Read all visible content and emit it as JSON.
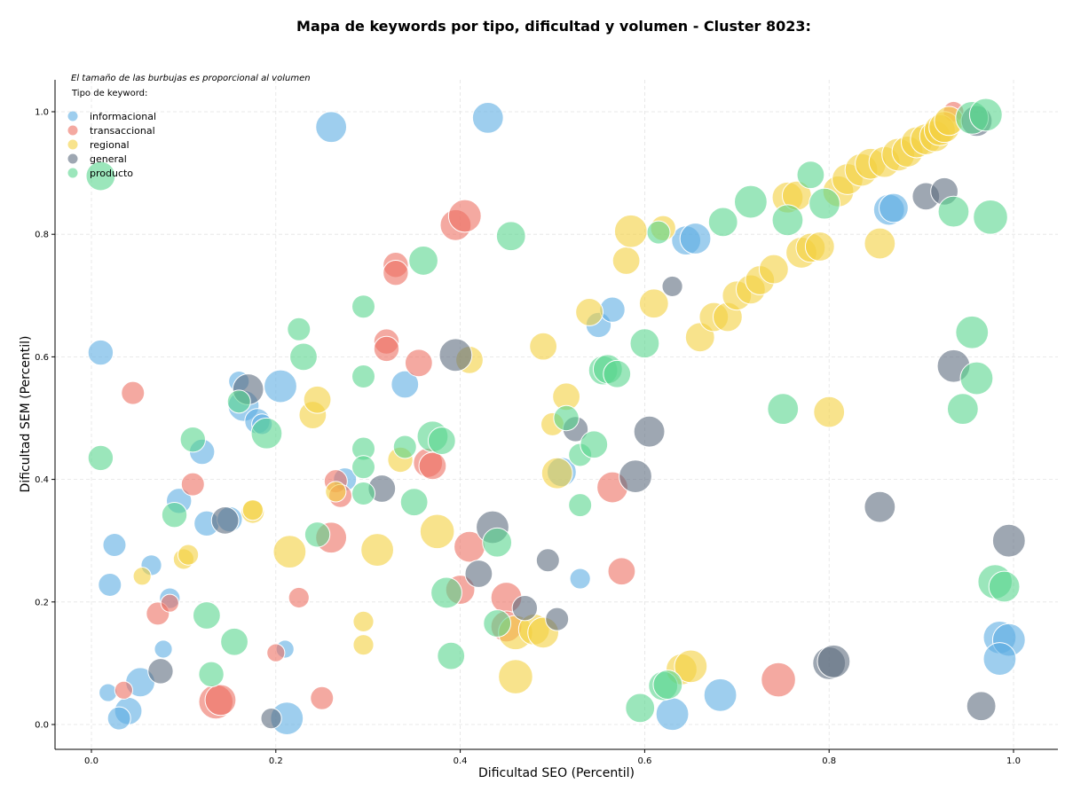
{
  "chart_data": {
    "type": "scatter",
    "title": "Mapa de keywords por tipo, dificultad y volumen - Cluster 8023:",
    "xlabel": "Dificultad SEO (Percentil)",
    "ylabel": "Dificultad SEM (Percentil)",
    "note": "El tamaño de las burbujas es proporcional al volumen",
    "legend_title": "Tipo de keyword:",
    "legend_position": "top-left",
    "grid": true,
    "xlim": [
      -0.04,
      1.05
    ],
    "ylim": [
      -0.04,
      1.05
    ],
    "xticks": [
      "0.0",
      "0.2",
      "0.4",
      "0.6",
      "0.8",
      "1.0"
    ],
    "yticks": [
      "0.0",
      "0.2",
      "0.4",
      "0.6",
      "0.8",
      "1.0"
    ],
    "series": [
      {
        "name": "informacional",
        "color": "#5dade2",
        "points": [
          [
            0.26,
            0.975,
            45
          ],
          [
            0.43,
            0.99,
            45
          ],
          [
            0.01,
            0.607,
            30
          ],
          [
            0.16,
            0.56,
            20
          ],
          [
            0.165,
            0.52,
            45
          ],
          [
            0.205,
            0.552,
            50
          ],
          [
            0.18,
            0.495,
            30
          ],
          [
            0.185,
            0.49,
            20
          ],
          [
            0.12,
            0.445,
            30
          ],
          [
            0.095,
            0.365,
            30
          ],
          [
            0.125,
            0.328,
            30
          ],
          [
            0.15,
            0.335,
            30
          ],
          [
            0.275,
            0.4,
            25
          ],
          [
            0.34,
            0.555,
            35
          ],
          [
            0.025,
            0.293,
            25
          ],
          [
            0.02,
            0.228,
            25
          ],
          [
            0.085,
            0.206,
            20
          ],
          [
            0.065,
            0.26,
            20
          ],
          [
            0.078,
            0.123,
            15
          ],
          [
            0.018,
            0.052,
            15
          ],
          [
            0.04,
            0.022,
            35
          ],
          [
            0.03,
            0.01,
            25
          ],
          [
            0.053,
            0.069,
            40
          ],
          [
            0.21,
            0.123,
            15
          ],
          [
            0.212,
            0.01,
            50
          ],
          [
            0.51,
            0.412,
            40
          ],
          [
            0.55,
            0.652,
            30
          ],
          [
            0.565,
            0.677,
            30
          ],
          [
            0.53,
            0.238,
            20
          ],
          [
            0.645,
            0.79,
            40
          ],
          [
            0.655,
            0.793,
            45
          ],
          [
            0.865,
            0.84,
            45
          ],
          [
            0.87,
            0.843,
            40
          ],
          [
            0.63,
            0.017,
            50
          ],
          [
            0.682,
            0.048,
            50
          ],
          [
            0.985,
            0.142,
            50
          ],
          [
            0.995,
            0.138,
            50
          ],
          [
            0.985,
            0.107,
            50
          ]
        ]
      },
      {
        "name": "transaccional",
        "color": "#ec7063",
        "points": [
          [
            0.045,
            0.541,
            25
          ],
          [
            0.11,
            0.392,
            25
          ],
          [
            0.265,
            0.397,
            25
          ],
          [
            0.27,
            0.373,
            25
          ],
          [
            0.26,
            0.305,
            45
          ],
          [
            0.225,
            0.207,
            20
          ],
          [
            0.25,
            0.043,
            25
          ],
          [
            0.135,
            0.037,
            55
          ],
          [
            0.14,
            0.04,
            45
          ],
          [
            0.072,
            0.181,
            25
          ],
          [
            0.085,
            0.198,
            15
          ],
          [
            0.035,
            0.056,
            15
          ],
          [
            0.2,
            0.117,
            15
          ],
          [
            0.33,
            0.75,
            30
          ],
          [
            0.33,
            0.737,
            30
          ],
          [
            0.32,
            0.625,
            30
          ],
          [
            0.32,
            0.613,
            30
          ],
          [
            0.355,
            0.59,
            35
          ],
          [
            0.365,
            0.427,
            40
          ],
          [
            0.37,
            0.422,
            35
          ],
          [
            0.395,
            0.815,
            45
          ],
          [
            0.405,
            0.83,
            50
          ],
          [
            0.41,
            0.29,
            45
          ],
          [
            0.4,
            0.22,
            40
          ],
          [
            0.45,
            0.207,
            45
          ],
          [
            0.45,
            0.16,
            45
          ],
          [
            0.565,
            0.387,
            45
          ],
          [
            0.575,
            0.25,
            35
          ],
          [
            0.745,
            0.073,
            55
          ],
          [
            0.935,
            1.0,
            20
          ]
        ]
      },
      {
        "name": "regional",
        "color": "#f4d03f",
        "points": [
          [
            0.055,
            0.242,
            15
          ],
          [
            0.1,
            0.27,
            20
          ],
          [
            0.105,
            0.277,
            20
          ],
          [
            0.175,
            0.347,
            25
          ],
          [
            0.175,
            0.35,
            20
          ],
          [
            0.215,
            0.282,
            50
          ],
          [
            0.24,
            0.505,
            35
          ],
          [
            0.245,
            0.53,
            35
          ],
          [
            0.265,
            0.38,
            20
          ],
          [
            0.295,
            0.168,
            20
          ],
          [
            0.295,
            0.13,
            20
          ],
          [
            0.31,
            0.285,
            50
          ],
          [
            0.335,
            0.432,
            30
          ],
          [
            0.375,
            0.315,
            55
          ],
          [
            0.41,
            0.595,
            35
          ],
          [
            0.46,
            0.15,
            55
          ],
          [
            0.46,
            0.078,
            55
          ],
          [
            0.48,
            0.155,
            45
          ],
          [
            0.49,
            0.15,
            45
          ],
          [
            0.49,
            0.617,
            35
          ],
          [
            0.5,
            0.49,
            25
          ],
          [
            0.505,
            0.41,
            45
          ],
          [
            0.515,
            0.535,
            35
          ],
          [
            0.54,
            0.673,
            35
          ],
          [
            0.58,
            0.757,
            35
          ],
          [
            0.585,
            0.805,
            50
          ],
          [
            0.62,
            0.81,
            30
          ],
          [
            0.61,
            0.687,
            40
          ],
          [
            0.64,
            0.09,
            45
          ],
          [
            0.65,
            0.095,
            50
          ],
          [
            0.66,
            0.632,
            40
          ],
          [
            0.675,
            0.665,
            40
          ],
          [
            0.69,
            0.665,
            40
          ],
          [
            0.7,
            0.7,
            40
          ],
          [
            0.715,
            0.71,
            40
          ],
          [
            0.725,
            0.725,
            40
          ],
          [
            0.74,
            0.743,
            40
          ],
          [
            0.755,
            0.86,
            45
          ],
          [
            0.765,
            0.863,
            40
          ],
          [
            0.77,
            0.77,
            45
          ],
          [
            0.78,
            0.778,
            40
          ],
          [
            0.79,
            0.78,
            40
          ],
          [
            0.8,
            0.51,
            45
          ],
          [
            0.81,
            0.87,
            45
          ],
          [
            0.82,
            0.89,
            45
          ],
          [
            0.835,
            0.905,
            50
          ],
          [
            0.845,
            0.915,
            45
          ],
          [
            0.855,
            0.785,
            45
          ],
          [
            0.86,
            0.918,
            45
          ],
          [
            0.875,
            0.93,
            50
          ],
          [
            0.885,
            0.935,
            45
          ],
          [
            0.895,
            0.95,
            45
          ],
          [
            0.905,
            0.955,
            45
          ],
          [
            0.915,
            0.96,
            45
          ],
          [
            0.92,
            0.97,
            45
          ],
          [
            0.925,
            0.975,
            45
          ],
          [
            0.93,
            0.985,
            40
          ]
        ]
      },
      {
        "name": "general",
        "color": "#5d6d7e",
        "points": [
          [
            0.17,
            0.547,
            45
          ],
          [
            0.145,
            0.333,
            35
          ],
          [
            0.075,
            0.087,
            30
          ],
          [
            0.195,
            0.01,
            20
          ],
          [
            0.315,
            0.385,
            35
          ],
          [
            0.395,
            0.603,
            50
          ],
          [
            0.42,
            0.246,
            35
          ],
          [
            0.435,
            0.322,
            50
          ],
          [
            0.47,
            0.19,
            30
          ],
          [
            0.495,
            0.268,
            25
          ],
          [
            0.505,
            0.172,
            25
          ],
          [
            0.525,
            0.482,
            30
          ],
          [
            0.59,
            0.405,
            50
          ],
          [
            0.605,
            0.478,
            45
          ],
          [
            0.63,
            0.715,
            20
          ],
          [
            0.8,
            0.1,
            50
          ],
          [
            0.805,
            0.103,
            50
          ],
          [
            0.855,
            0.355,
            45
          ],
          [
            0.905,
            0.862,
            35
          ],
          [
            0.925,
            0.87,
            35
          ],
          [
            0.935,
            0.585,
            50
          ],
          [
            0.96,
            0.985,
            45
          ],
          [
            0.965,
            0.03,
            40
          ],
          [
            0.995,
            0.3,
            50
          ]
        ]
      },
      {
        "name": "producto",
        "color": "#58d68d",
        "points": [
          [
            0.01,
            0.895,
            40
          ],
          [
            0.01,
            0.435,
            30
          ],
          [
            0.09,
            0.342,
            30
          ],
          [
            0.11,
            0.465,
            30
          ],
          [
            0.125,
            0.178,
            35
          ],
          [
            0.13,
            0.082,
            30
          ],
          [
            0.155,
            0.135,
            35
          ],
          [
            0.16,
            0.527,
            25
          ],
          [
            0.19,
            0.475,
            45
          ],
          [
            0.225,
            0.645,
            25
          ],
          [
            0.23,
            0.6,
            35
          ],
          [
            0.245,
            0.31,
            30
          ],
          [
            0.295,
            0.682,
            25
          ],
          [
            0.295,
            0.568,
            25
          ],
          [
            0.295,
            0.45,
            25
          ],
          [
            0.295,
            0.42,
            25
          ],
          [
            0.295,
            0.377,
            25
          ],
          [
            0.34,
            0.453,
            25
          ],
          [
            0.35,
            0.363,
            35
          ],
          [
            0.36,
            0.757,
            40
          ],
          [
            0.37,
            0.47,
            45
          ],
          [
            0.38,
            0.463,
            35
          ],
          [
            0.385,
            0.215,
            45
          ],
          [
            0.39,
            0.112,
            35
          ],
          [
            0.44,
            0.297,
            40
          ],
          [
            0.44,
            0.165,
            35
          ],
          [
            0.455,
            0.797,
            40
          ],
          [
            0.515,
            0.5,
            30
          ],
          [
            0.53,
            0.44,
            25
          ],
          [
            0.53,
            0.358,
            25
          ],
          [
            0.545,
            0.457,
            35
          ],
          [
            0.555,
            0.578,
            40
          ],
          [
            0.56,
            0.58,
            40
          ],
          [
            0.57,
            0.572,
            35
          ],
          [
            0.595,
            0.027,
            40
          ],
          [
            0.6,
            0.622,
            40
          ],
          [
            0.615,
            0.803,
            25
          ],
          [
            0.62,
            0.063,
            40
          ],
          [
            0.625,
            0.065,
            40
          ],
          [
            0.685,
            0.82,
            40
          ],
          [
            0.715,
            0.853,
            50
          ],
          [
            0.75,
            0.515,
            45
          ],
          [
            0.755,
            0.823,
            45
          ],
          [
            0.78,
            0.897,
            35
          ],
          [
            0.795,
            0.85,
            45
          ],
          [
            0.935,
            0.837,
            45
          ],
          [
            0.945,
            0.515,
            45
          ],
          [
            0.955,
            0.64,
            50
          ],
          [
            0.955,
            0.99,
            50
          ],
          [
            0.96,
            0.565,
            50
          ],
          [
            0.97,
            0.995,
            50
          ],
          [
            0.975,
            0.828,
            55
          ],
          [
            0.98,
            0.233,
            55
          ],
          [
            0.99,
            0.225,
            45
          ]
        ]
      }
    ]
  }
}
